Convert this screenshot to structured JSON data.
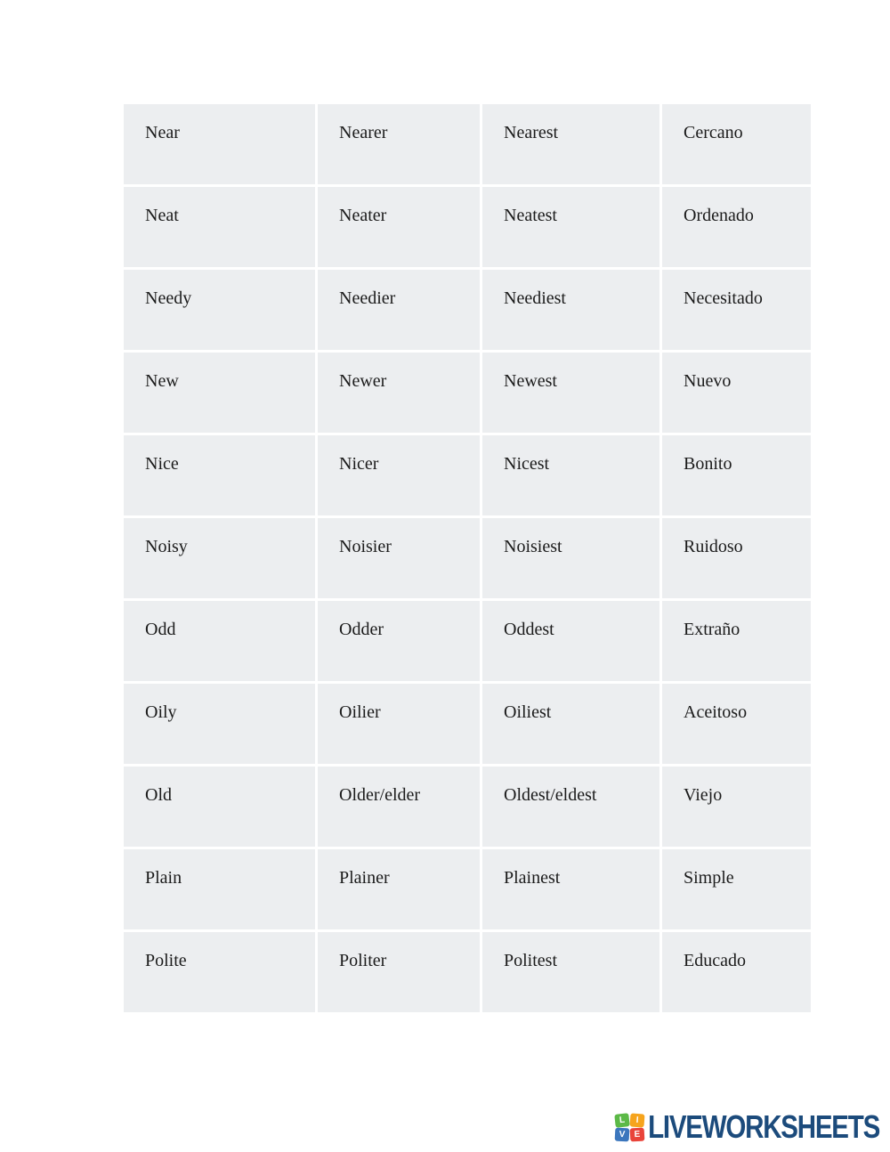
{
  "table": {
    "cell_bg": "#eceef0",
    "text_color": "#1b1b1b",
    "rows": [
      [
        "Near",
        "Nearer",
        "Nearest",
        "Cercano"
      ],
      [
        "Neat",
        "Neater",
        "Neatest",
        "Ordenado"
      ],
      [
        "Needy",
        "Needier",
        "Neediest",
        "Necesitado"
      ],
      [
        "New",
        "Newer",
        "Newest",
        "Nuevo"
      ],
      [
        "Nice",
        "Nicer",
        "Nicest",
        "Bonito"
      ],
      [
        "Noisy",
        "Noisier",
        "Noisiest",
        "Ruidoso"
      ],
      [
        "Odd",
        "Odder",
        "Oddest",
        "Extraño"
      ],
      [
        "Oily",
        "Oilier",
        "Oiliest",
        "Aceitoso"
      ],
      [
        "Old",
        "Older/elder",
        "Oldest/eldest",
        "Viejo"
      ],
      [
        "Plain",
        "Plainer",
        "Plainest",
        "Simple"
      ],
      [
        "Polite",
        "Politer",
        "Politest",
        "Educado"
      ]
    ]
  },
  "footer": {
    "brand": "LIVEWORKSHEETS",
    "brand_color": "#1c4b7c",
    "icon_tiles": [
      {
        "letter": "L",
        "color": "#5cb947"
      },
      {
        "letter": "I",
        "color": "#f6a41d"
      },
      {
        "letter": "V",
        "color": "#3b76bd"
      },
      {
        "letter": "E",
        "color": "#e9443a"
      }
    ]
  }
}
